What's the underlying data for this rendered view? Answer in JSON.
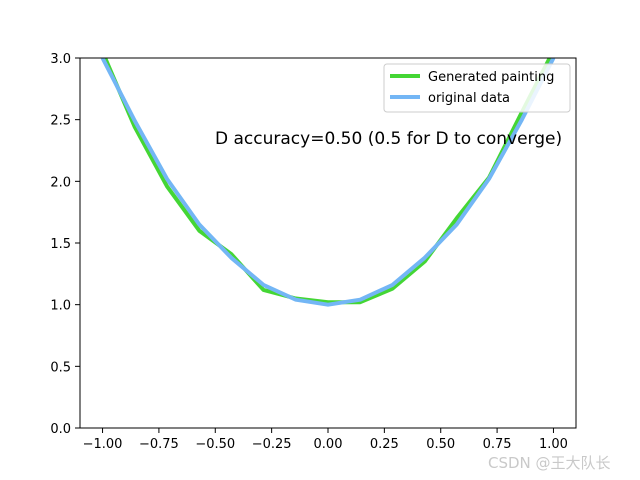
{
  "chart_data": {
    "type": "line",
    "xlim": [
      -1.1,
      1.1
    ],
    "ylim": [
      0,
      3
    ],
    "xticks": [
      -1.0,
      -0.75,
      -0.5,
      -0.25,
      0.0,
      0.25,
      0.5,
      0.75,
      1.0
    ],
    "xtick_labels": [
      "−1.00",
      "−0.75",
      "−0.50",
      "−0.25",
      "0.00",
      "0.25",
      "0.50",
      "0.75",
      "1.00"
    ],
    "yticks": [
      0.0,
      0.5,
      1.0,
      1.5,
      2.0,
      2.5,
      3.0
    ],
    "ytick_labels": [
      "0.0",
      "0.5",
      "1.0",
      "1.5",
      "2.0",
      "2.5",
      "3.0"
    ],
    "grid": false,
    "legend_position": "top-right",
    "series": [
      {
        "name": "Generated painting",
        "color": "#44d634",
        "x": [
          -1.0,
          -0.857,
          -0.714,
          -0.571,
          -0.429,
          -0.286,
          -0.143,
          0.0,
          0.143,
          0.286,
          0.429,
          0.571,
          0.714,
          0.857,
          1.0
        ],
        "y": [
          3.05,
          2.44,
          1.96,
          1.6,
          1.41,
          1.12,
          1.05,
          1.02,
          1.02,
          1.13,
          1.35,
          1.7,
          2.03,
          2.55,
          3.06
        ]
      },
      {
        "name": "original data",
        "color": "#73b6f5",
        "x": [
          -1.0,
          -0.857,
          -0.714,
          -0.571,
          -0.429,
          -0.286,
          -0.143,
          0.0,
          0.143,
          0.286,
          0.429,
          0.571,
          0.714,
          0.857,
          1.0
        ],
        "y": [
          3.0,
          2.49,
          2.02,
          1.65,
          1.38,
          1.16,
          1.04,
          1.0,
          1.04,
          1.16,
          1.38,
          1.65,
          2.02,
          2.49,
          3.0
        ]
      }
    ],
    "annotation": "D accuracy=0.50 (0.5 for D to converge)"
  },
  "watermark": "CSDN @王大队长"
}
